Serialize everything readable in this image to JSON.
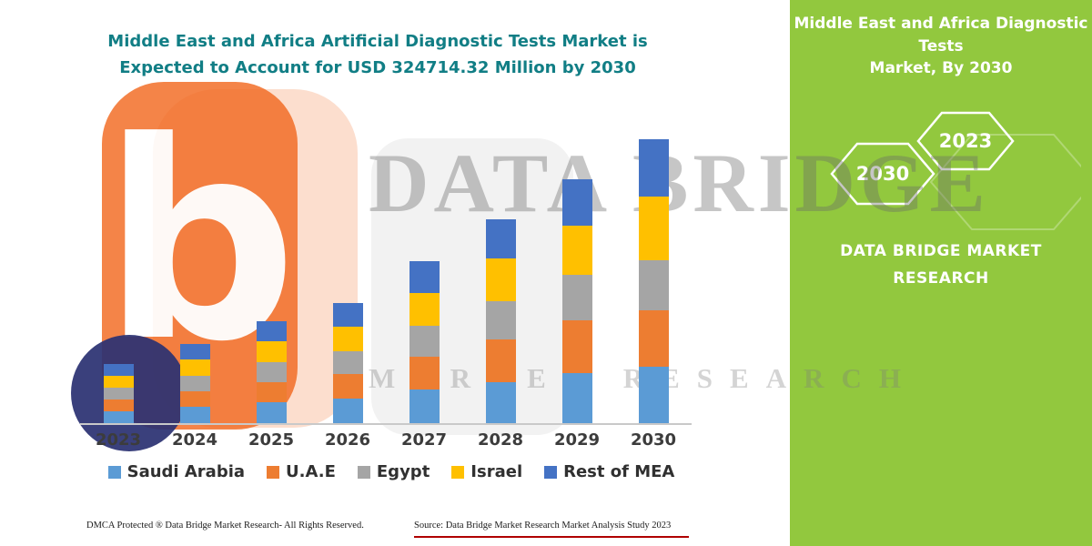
{
  "title": {
    "line1": "Middle East and Africa Artificial Diagnostic Tests Market is",
    "line2": "Expected to Account for USD 324714.32 Million by 2030"
  },
  "side_panel": {
    "heading_line1": "Middle East and Africa Diagnostic Tests",
    "heading_line2": "Market, By 2030",
    "hexagon_labels": [
      "2030",
      "2023"
    ],
    "brand_line1": "DATA BRIDGE MARKET",
    "brand_line2": "RESEARCH"
  },
  "watermark": {
    "line1": "DATA BRIDGE",
    "line2": "MARKET RESEARCH",
    "logo_letter": "b"
  },
  "footer": {
    "dmca": "DMCA Protected ® Data Bridge Market Research-  All Rights Reserved.",
    "source": "Source: Data Bridge Market Research  Market Analysis Study 2023"
  },
  "colors": {
    "title": "#117E85",
    "panel_green": "#92C83E",
    "footer_underline": "#B00000",
    "axis_line": "#C9C9C9"
  },
  "chart_data": {
    "type": "bar",
    "stacked": true,
    "title": "Middle East and Africa Artificial Diagnostic Tests Market is Expected to Account for USD 324714.32 Million by 2030",
    "categories": [
      "2023",
      "2024",
      "2025",
      "2026",
      "2027",
      "2028",
      "2029",
      "2030"
    ],
    "series": [
      {
        "name": "Saudi Arabia",
        "color": "#5B9BD5",
        "values": [
          13,
          18,
          23,
          27,
          37,
          45,
          55,
          62
        ]
      },
      {
        "name": "U.A.E",
        "color": "#ED7D31",
        "values": [
          13,
          17,
          22,
          27,
          36,
          47,
          58,
          62
        ]
      },
      {
        "name": "Egypt",
        "color": "#A5A5A5",
        "values": [
          13,
          17,
          22,
          25,
          34,
          42,
          50,
          55
        ]
      },
      {
        "name": "Israel",
        "color": "#FFC000",
        "values": [
          13,
          18,
          23,
          27,
          36,
          47,
          54,
          70
        ]
      },
      {
        "name": "Rest of MEA",
        "color": "#4472C4",
        "values": [
          13,
          17,
          22,
          26,
          35,
          43,
          51,
          63
        ]
      }
    ],
    "totals_by_year": [
      65,
      87,
      112,
      132,
      178,
      224,
      268,
      312
    ],
    "xlabel": "",
    "ylabel": "",
    "y_axis_labels_visible": false,
    "ylim": [
      0,
      333
    ],
    "grid": false,
    "legend_position": "bottom"
  }
}
